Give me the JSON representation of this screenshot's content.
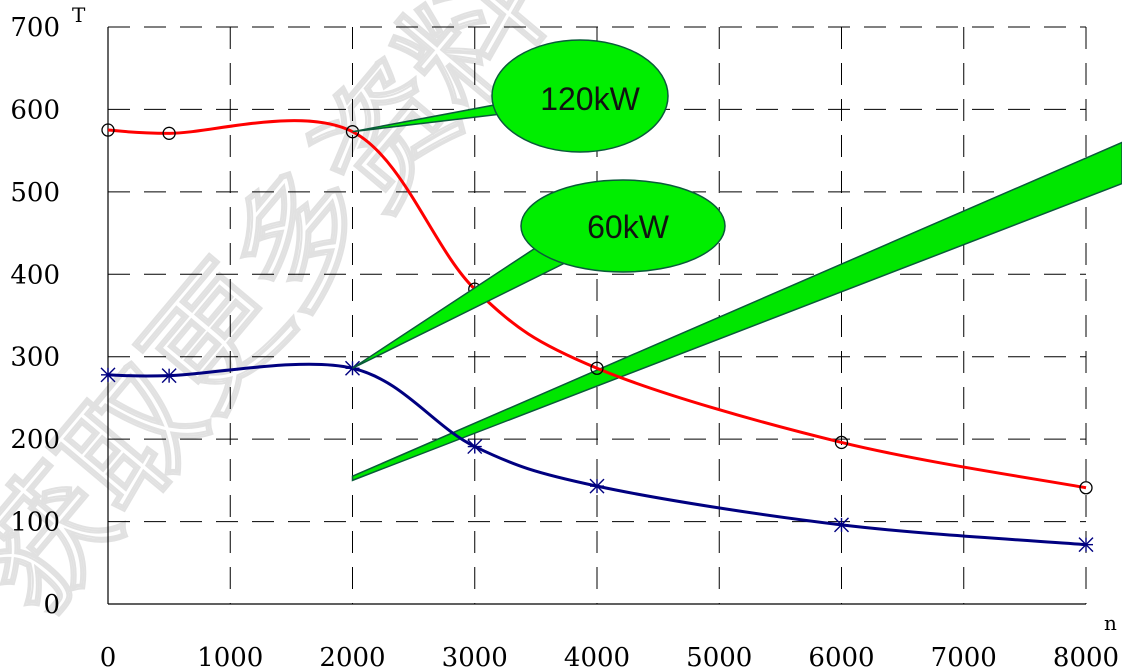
{
  "chart_data": {
    "type": "line",
    "title": "",
    "xlabel": "n",
    "ylabel": "T",
    "xlim": [
      0,
      8000
    ],
    "ylim": [
      0,
      700
    ],
    "x_ticks": [
      0,
      1000,
      2000,
      3000,
      4000,
      5000,
      6000,
      7000,
      8000
    ],
    "y_ticks": [
      0,
      100,
      200,
      300,
      400,
      500,
      600,
      700
    ],
    "grid": true,
    "grid_style": "dashed",
    "series": [
      {
        "marker": "circle",
        "color": "#ff0000",
        "x": [
          0,
          500,
          2000,
          3000,
          4000,
          6000,
          8000
        ],
        "y": [
          575,
          571,
          573,
          382,
          286,
          196,
          141
        ]
      },
      {
        "marker": "x",
        "color": "#000080",
        "x": [
          0,
          500,
          2000,
          3000,
          4000,
          6000,
          8000
        ],
        "y": [
          278,
          277,
          286,
          191,
          143,
          96,
          72
        ]
      }
    ],
    "callouts": [
      {
        "label": "120kW",
        "color": "#00ee00"
      },
      {
        "label": "60kW",
        "color": "#00ee00"
      }
    ],
    "watermark": "获取更多资料"
  }
}
